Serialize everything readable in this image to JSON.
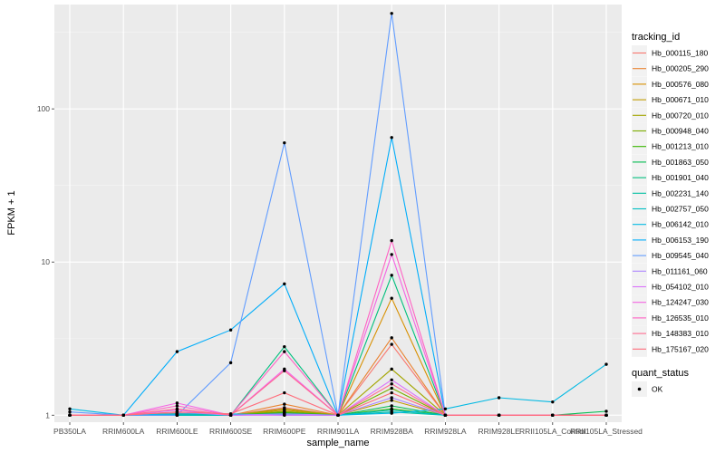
{
  "chart_data": {
    "type": "line",
    "xlabel": "sample_name",
    "ylabel": "FPKM + 1",
    "y_scale": "log10",
    "ylim": [
      0.9,
      480
    ],
    "y_ticks": [
      1,
      10,
      100
    ],
    "y_tick_labels": [
      "1",
      "10",
      "100"
    ],
    "categories": [
      "PB350LA",
      "RRIM600LA",
      "RRIM600LE",
      "RRIM600SE",
      "RRIM600PE",
      "RRIM901LA",
      "RRIM928BA",
      "RRIM928LA",
      "RRIM928LE",
      "RRII105LA_Control",
      "RRII105LA_Stressed"
    ],
    "grid": true,
    "legend_position": "right",
    "background": "#ebebeb",
    "legend_title": "tracking_id",
    "series": [
      {
        "name": "Hb_000115_180",
        "color": "#F8766D",
        "values": [
          1.0,
          1.0,
          1.03,
          1.0,
          1.12,
          1.0,
          2.9,
          1.0,
          1.0,
          1.0,
          1.0
        ]
      },
      {
        "name": "Hb_000205_290",
        "color": "#EA8331",
        "values": [
          1.0,
          1.0,
          1.02,
          1.0,
          1.18,
          1.0,
          3.2,
          1.0,
          1.0,
          1.0,
          1.0
        ]
      },
      {
        "name": "Hb_000576_080",
        "color": "#D89000",
        "values": [
          1.0,
          1.0,
          1.01,
          1.0,
          1.08,
          1.0,
          5.8,
          1.0,
          1.0,
          1.0,
          1.0
        ]
      },
      {
        "name": "Hb_000671_010",
        "color": "#C09B00",
        "values": [
          1.0,
          1.0,
          1.0,
          1.0,
          1.05,
          1.0,
          1.25,
          1.0,
          1.0,
          1.0,
          1.0
        ]
      },
      {
        "name": "Hb_000720_010",
        "color": "#A3A500",
        "values": [
          1.0,
          1.0,
          1.0,
          1.0,
          1.1,
          1.0,
          2.0,
          1.0,
          1.0,
          1.0,
          1.0
        ]
      },
      {
        "name": "Hb_000948_040",
        "color": "#7CAE00",
        "values": [
          1.0,
          1.0,
          1.02,
          1.0,
          1.06,
          1.0,
          1.5,
          1.0,
          1.0,
          1.0,
          1.0
        ]
      },
      {
        "name": "Hb_001213_010",
        "color": "#39B600",
        "values": [
          1.0,
          1.0,
          1.0,
          1.0,
          1.04,
          1.0,
          1.1,
          1.0,
          1.0,
          1.0,
          1.0
        ]
      },
      {
        "name": "Hb_001863_050",
        "color": "#00BB4E",
        "values": [
          1.0,
          1.0,
          1.0,
          1.0,
          1.03,
          1.0,
          1.15,
          1.0,
          1.0,
          1.0,
          1.06
        ]
      },
      {
        "name": "Hb_001901_040",
        "color": "#00BF7D",
        "values": [
          1.0,
          1.0,
          1.01,
          1.0,
          2.8,
          1.0,
          8.2,
          1.0,
          1.0,
          1.0,
          1.0
        ]
      },
      {
        "name": "Hb_002231_140",
        "color": "#00C1A3",
        "values": [
          1.0,
          1.0,
          1.0,
          1.0,
          1.02,
          1.0,
          1.05,
          1.0,
          1.0,
          1.0,
          1.0
        ]
      },
      {
        "name": "Hb_002757_050",
        "color": "#00BFC4",
        "values": [
          1.0,
          1.0,
          1.0,
          1.0,
          1.01,
          1.0,
          1.08,
          1.0,
          1.0,
          1.0,
          1.0
        ]
      },
      {
        "name": "Hb_006142_010",
        "color": "#00B9E3",
        "values": [
          1.1,
          1.0,
          1.02,
          1.02,
          1.0,
          1.0,
          1.03,
          1.1,
          1.3,
          1.22,
          2.15
        ]
      },
      {
        "name": "Hb_006153_190",
        "color": "#00ADFA",
        "values": [
          1.0,
          1.0,
          2.6,
          3.6,
          7.2,
          1.0,
          65,
          1.0,
          1.0,
          1.0,
          1.0
        ]
      },
      {
        "name": "Hb_009545_040",
        "color": "#619CFF",
        "values": [
          1.05,
          1.0,
          1.0,
          2.2,
          60,
          1.0,
          420,
          1.0,
          1.0,
          1.0,
          1.0
        ]
      },
      {
        "name": "Hb_011161_060",
        "color": "#AE87FF",
        "values": [
          1.0,
          1.0,
          1.05,
          1.0,
          1.02,
          1.0,
          1.3,
          1.0,
          1.0,
          1.0,
          1.0
        ]
      },
      {
        "name": "Hb_054102_010",
        "color": "#DB72FB",
        "values": [
          1.0,
          1.0,
          1.08,
          1.0,
          1.0,
          1.0,
          1.7,
          1.0,
          1.0,
          1.0,
          1.0
        ]
      },
      {
        "name": "Hb_124247_030",
        "color": "#F564E3",
        "values": [
          1.0,
          1.0,
          1.2,
          1.0,
          2.0,
          1.0,
          11.2,
          1.0,
          1.0,
          1.0,
          1.0
        ]
      },
      {
        "name": "Hb_126535_010",
        "color": "#FF61C3",
        "values": [
          1.0,
          1.0,
          1.15,
          1.0,
          2.6,
          1.0,
          13.8,
          1.0,
          1.0,
          1.0,
          1.0
        ]
      },
      {
        "name": "Hb_148383_010",
        "color": "#FF6C91",
        "values": [
          1.0,
          1.0,
          1.1,
          1.0,
          1.95,
          1.0,
          1.6,
          1.0,
          1.0,
          1.0,
          1.0
        ]
      },
      {
        "name": "Hb_175167_020",
        "color": "#FF6C7A",
        "values": [
          1.0,
          1.0,
          1.05,
          1.02,
          1.4,
          1.0,
          1.4,
          1.0,
          1.0,
          1.0,
          1.0
        ]
      }
    ],
    "shape_legend": {
      "title": "quant_status",
      "items": [
        "OK"
      ]
    }
  }
}
